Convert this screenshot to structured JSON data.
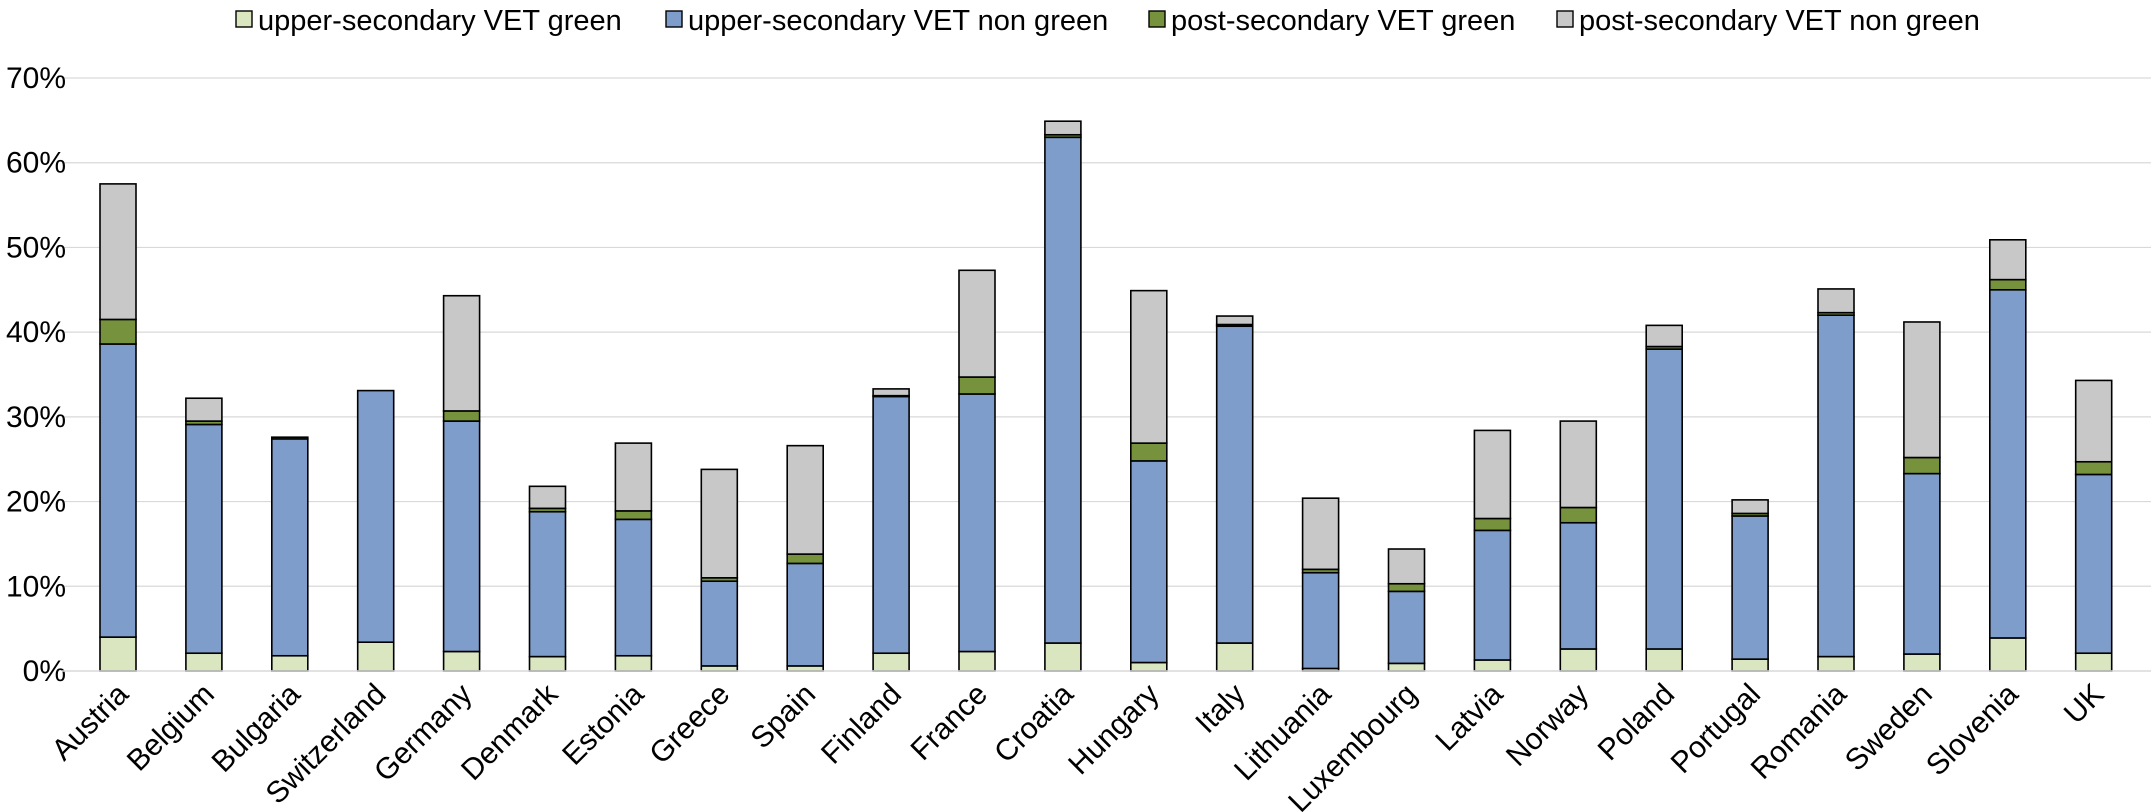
{
  "chart_data": {
    "type": "bar",
    "stacked": true,
    "title": "",
    "xlabel": "",
    "ylabel": "",
    "ylim": [
      0,
      70
    ],
    "yticks": [
      0,
      10,
      20,
      30,
      40,
      50,
      60,
      70
    ],
    "ytick_labels": [
      "0%",
      "10%",
      "20%",
      "30%",
      "40%",
      "50%",
      "60%",
      "70%"
    ],
    "grid": "horizontal",
    "legend_position": "top",
    "categories": [
      "Austria",
      "Belgium",
      "Bulgaria",
      "Switzerland",
      "Germany",
      "Denmark",
      "Estonia",
      "Greece",
      "Spain",
      "Finland",
      "France",
      "Croatia",
      "Hungary",
      "Italy",
      "Lithuania",
      "Luxembourg",
      "Latvia",
      "Norway",
      "Poland",
      "Portugal",
      "Romania",
      "Sweden",
      "Slovenia",
      "UK"
    ],
    "series": [
      {
        "name": "upper-secondary VET green",
        "color": "#d9e6bf",
        "values": [
          4.0,
          2.1,
          1.8,
          3.4,
          2.3,
          1.7,
          1.8,
          0.6,
          0.6,
          2.1,
          2.3,
          3.3,
          1.0,
          3.3,
          0.3,
          0.9,
          1.3,
          2.6,
          2.6,
          1.4,
          1.7,
          2.0,
          3.9,
          2.1
        ]
      },
      {
        "name": "upper-secondary VET non green",
        "color": "#7f9dca",
        "values": [
          34.6,
          27.0,
          25.6,
          29.7,
          27.2,
          17.1,
          16.1,
          10.0,
          12.1,
          30.3,
          30.4,
          59.7,
          23.8,
          37.4,
          11.3,
          8.5,
          15.3,
          14.9,
          35.4,
          16.9,
          40.3,
          21.3,
          41.1,
          21.1
        ]
      },
      {
        "name": "post-secondary VET green",
        "color": "#76923c",
        "values": [
          2.9,
          0.4,
          0.2,
          0.0,
          1.2,
          0.4,
          1.0,
          0.4,
          1.1,
          0.1,
          2.0,
          0.3,
          2.1,
          0.2,
          0.4,
          0.9,
          1.4,
          1.8,
          0.3,
          0.3,
          0.3,
          1.9,
          1.2,
          1.5
        ]
      },
      {
        "name": "post-secondary VET non green",
        "color": "#c8c8c8",
        "values": [
          16.0,
          2.7,
          0.0,
          0.0,
          13.6,
          2.6,
          8.0,
          12.8,
          12.8,
          0.8,
          12.6,
          1.6,
          18.0,
          1.0,
          8.4,
          4.1,
          10.4,
          10.2,
          2.5,
          1.6,
          2.8,
          16.0,
          4.7,
          9.6
        ]
      }
    ]
  }
}
